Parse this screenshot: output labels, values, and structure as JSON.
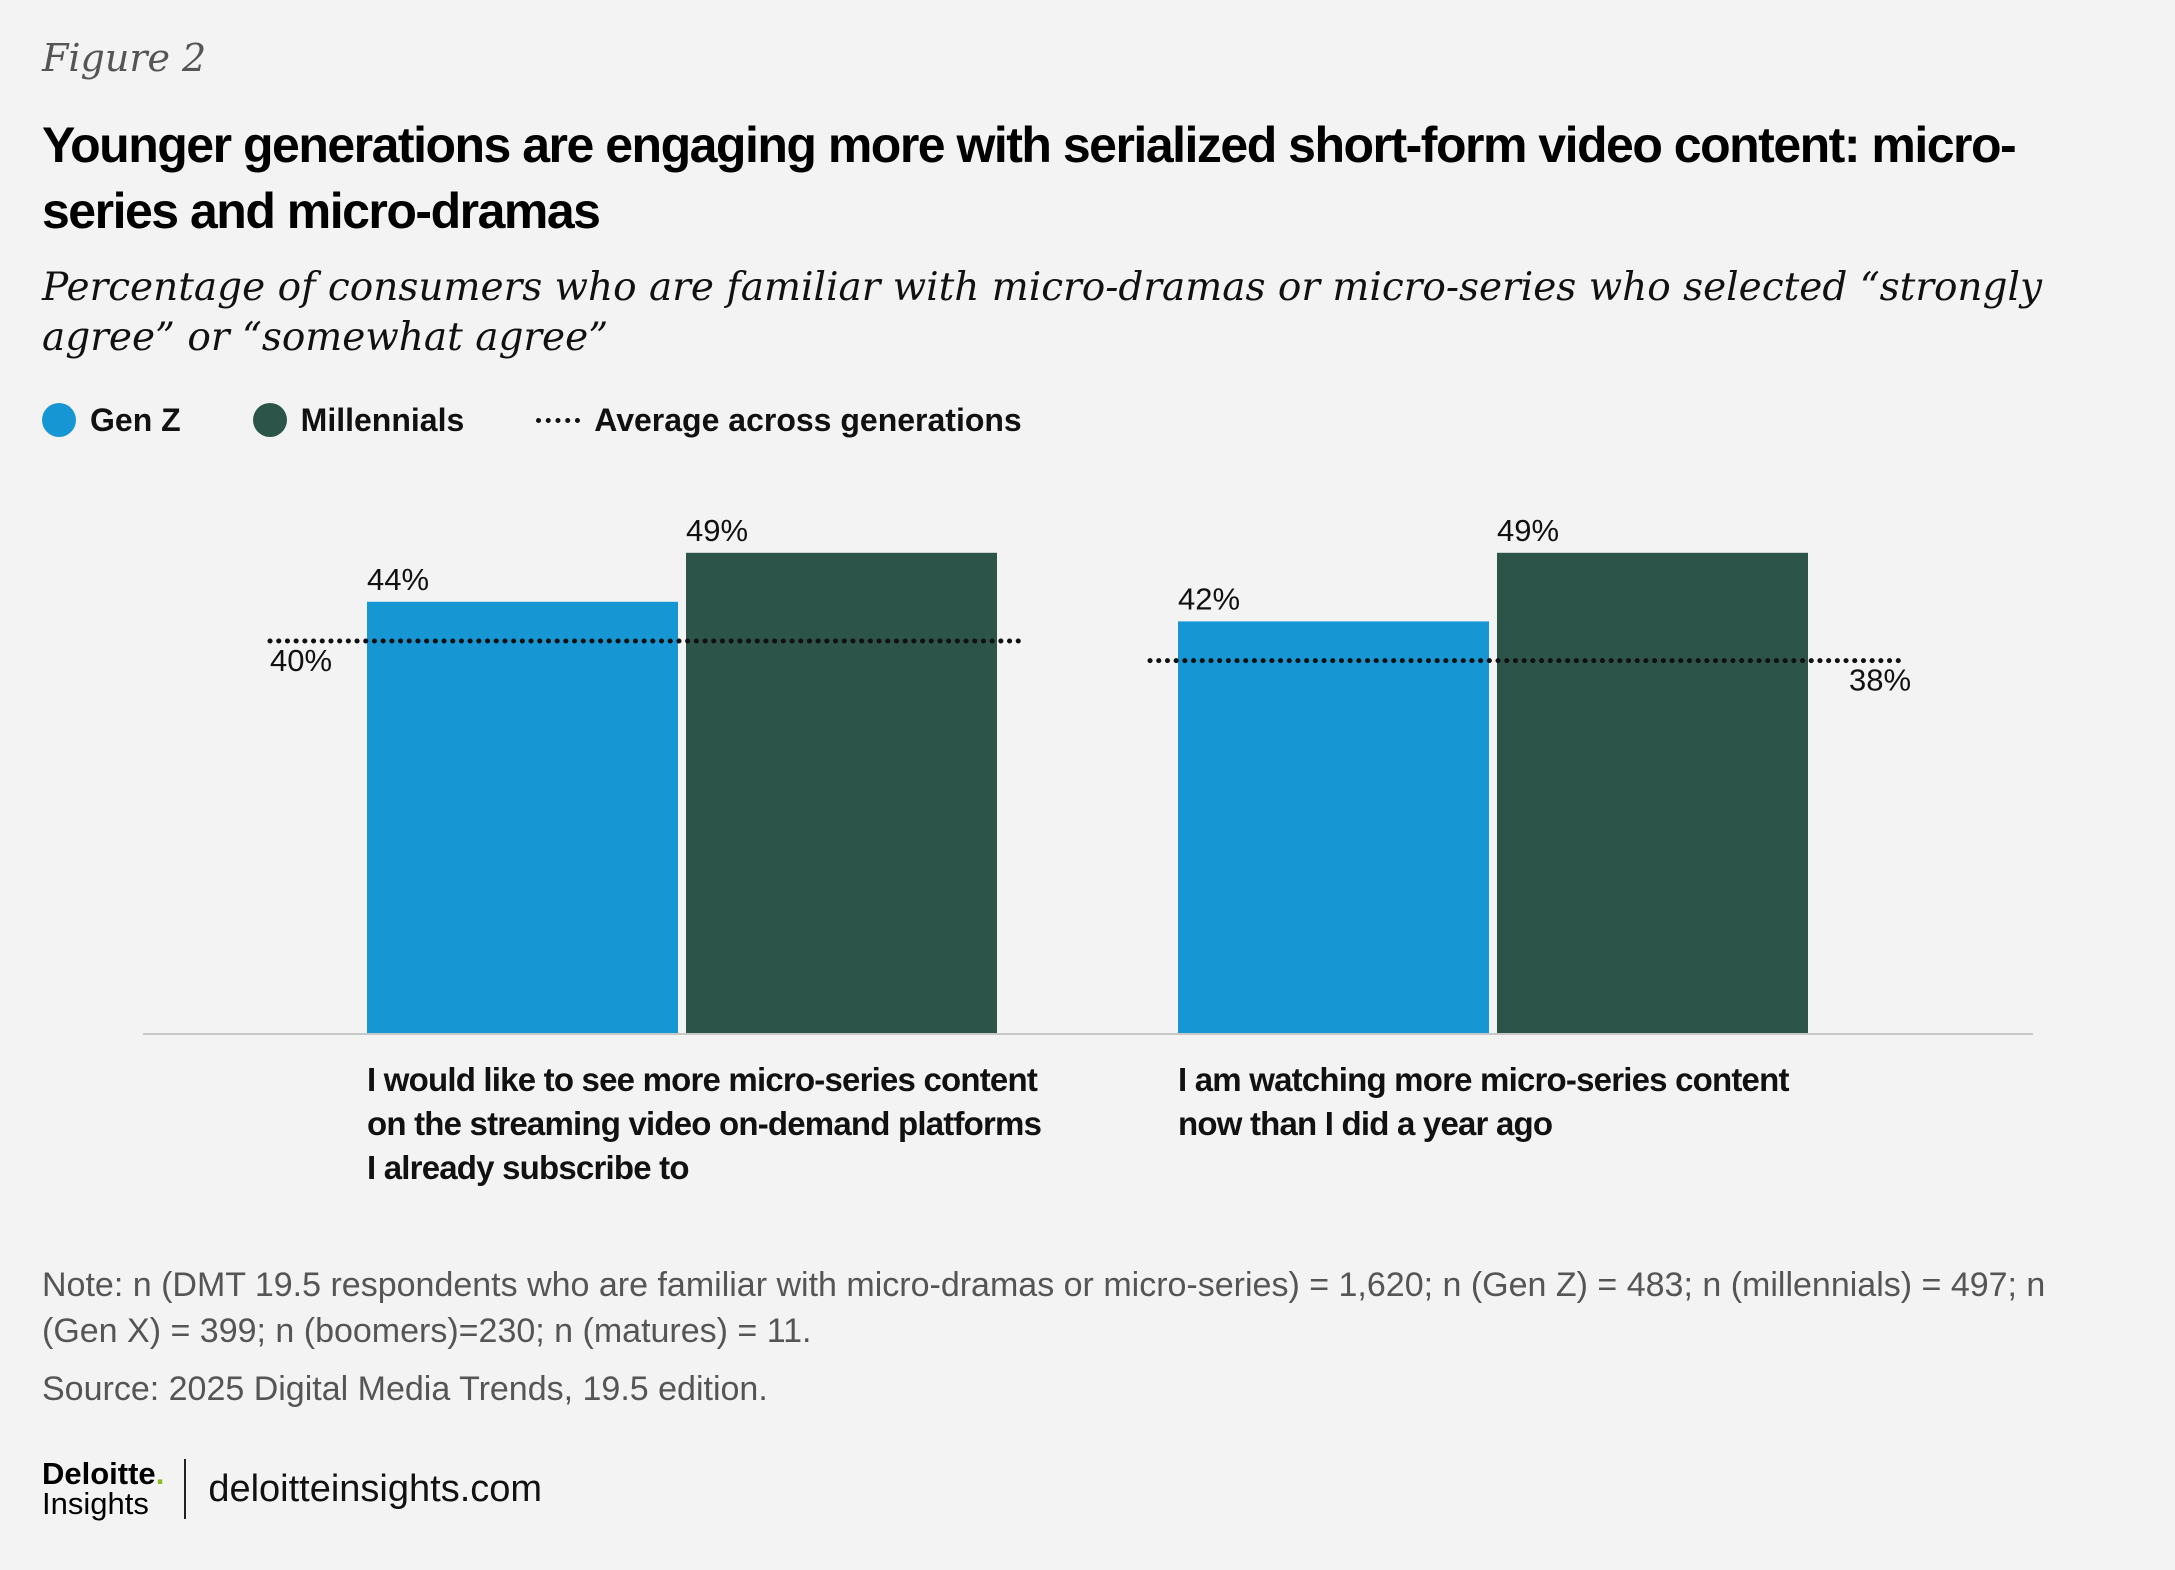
{
  "figure_label": "Figure 2",
  "title": "Younger generations are engaging more with serialized short-form video content: micro-series and micro-dramas",
  "subtitle": "Percentage of consumers who are familiar with micro-dramas or micro-series who selected “strongly agree” or “somewhat agree”",
  "legend": [
    {
      "label": "Gen Z",
      "color": "#1796d4",
      "marker": "circle"
    },
    {
      "label": "Millennials",
      "color": "#2c5448",
      "marker": "circle"
    },
    {
      "label": "Average across generations",
      "color": "#111111",
      "marker": "dotted-line"
    }
  ],
  "chart_data": {
    "type": "bar",
    "categories": [
      "I would like to see more micro-series content on the streaming video on-demand platforms I already subscribe to",
      "I am watching more micro-series content now than I did a year ago"
    ],
    "category_lines": [
      [
        "I would like to see more micro-series content",
        "on the streaming video on-demand platforms",
        "I already subscribe to"
      ],
      [
        "I am watching more micro-series content",
        "now than I did a year ago"
      ]
    ],
    "series": [
      {
        "name": "Gen Z",
        "values": [
          44,
          42
        ],
        "labels": [
          "44%",
          "42%"
        ],
        "color": "#1796d4"
      },
      {
        "name": "Millennials",
        "values": [
          49,
          49
        ],
        "labels": [
          "49%",
          "49%"
        ],
        "color": "#2c5448"
      }
    ],
    "averages": [
      {
        "name": "Average across generations",
        "value": 40,
        "label": "40%"
      },
      {
        "name": "Average across generations",
        "value": 38,
        "label": "38%"
      }
    ],
    "ylim": [
      0,
      49
    ],
    "grid": false
  },
  "note": "Note: n (DMT 19.5 respondents who are familiar with micro-dramas or micro-series) = 1,620; n (Gen Z) = 483; n (millennials) = 497; n (Gen X) = 399; n (boomers)=230; n (matures) = 11.",
  "source": "Source: 2025 Digital Media Trends, 19.5 edition.",
  "footer": {
    "logo_top": "Deloitte",
    "logo_dot": ".",
    "logo_bottom": "Insights",
    "site": "deloitteinsights.com"
  }
}
